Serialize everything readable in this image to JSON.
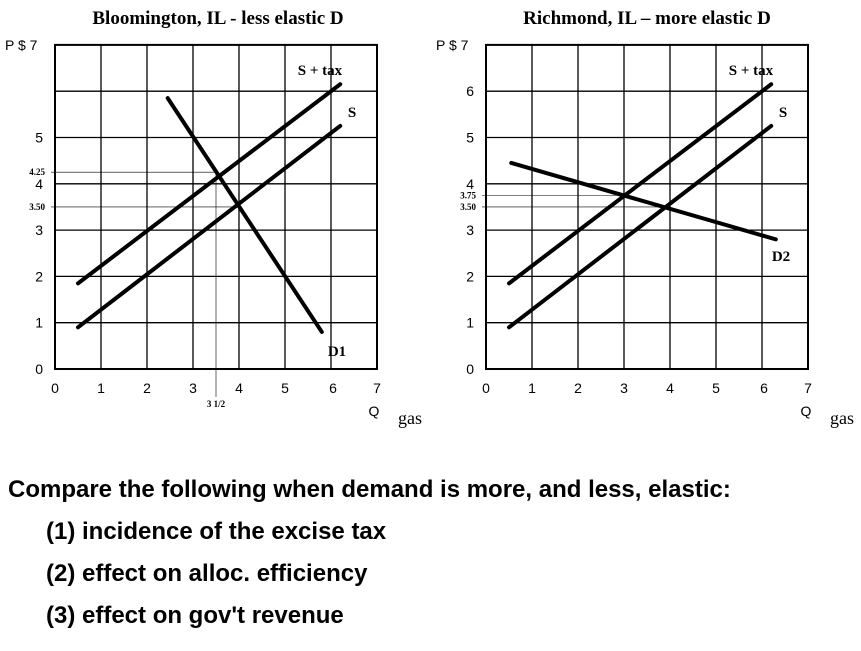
{
  "chart_data": [
    {
      "type": "line",
      "title": "Bloomington, IL - less elastic D",
      "ylabel": "P $",
      "xlabel": "Q",
      "xlabel_suffix": "gas",
      "xlim": [
        0,
        7
      ],
      "ylim": [
        0,
        7
      ],
      "grid": true,
      "x_ticks": [
        "0",
        "1",
        "2",
        "3",
        "4",
        "5",
        "6",
        "7"
      ],
      "y_ticks": [
        "0",
        "1",
        "2",
        "3",
        "4",
        "5",
        "7"
      ],
      "series": [
        {
          "name": "S + tax",
          "x": [
            0.5,
            6.2
          ],
          "y": [
            1.85,
            6.15
          ]
        },
        {
          "name": "S",
          "x": [
            0.5,
            6.2
          ],
          "y": [
            0.9,
            5.25
          ]
        },
        {
          "name": "D1",
          "x": [
            2.45,
            5.8
          ],
          "y": [
            5.85,
            0.8
          ]
        }
      ],
      "guide_values": [
        {
          "label": "4.25",
          "y": 4.25,
          "x": 3.5
        },
        {
          "label": "3.50",
          "y": 3.5,
          "x": 4.0
        }
      ],
      "annotations": [
        {
          "text": "3 1/2",
          "x": 3.5
        }
      ]
    },
    {
      "type": "line",
      "title": "Richmond, IL – more elastic D",
      "ylabel": "P $",
      "xlabel": "Q",
      "xlabel_suffix": "gas",
      "xlim": [
        0,
        7
      ],
      "ylim": [
        0,
        7
      ],
      "grid": true,
      "x_ticks": [
        "0",
        "1",
        "2",
        "3",
        "4",
        "5",
        "6",
        "7"
      ],
      "y_ticks": [
        "0",
        "1",
        "2",
        "3",
        "4",
        "5",
        "6",
        "7"
      ],
      "series": [
        {
          "name": "S + tax",
          "x": [
            0.5,
            6.2
          ],
          "y": [
            1.85,
            6.15
          ]
        },
        {
          "name": "S",
          "x": [
            0.5,
            6.2
          ],
          "y": [
            0.9,
            5.25
          ]
        },
        {
          "name": "D2",
          "x": [
            0.55,
            6.3
          ],
          "y": [
            4.45,
            2.8
          ]
        }
      ],
      "guide_values": [
        {
          "label": "3.75",
          "y": 3.75,
          "x": 3.0
        },
        {
          "label": "3.50",
          "y": 3.5,
          "x": 4.0
        }
      ]
    }
  ],
  "questions": {
    "prompt": "Compare the following when demand is more, and less, elastic:",
    "items": [
      "(1) incidence of the excise tax",
      "(2) effect on alloc. efficiency",
      "(3) effect on gov't revenue"
    ]
  }
}
